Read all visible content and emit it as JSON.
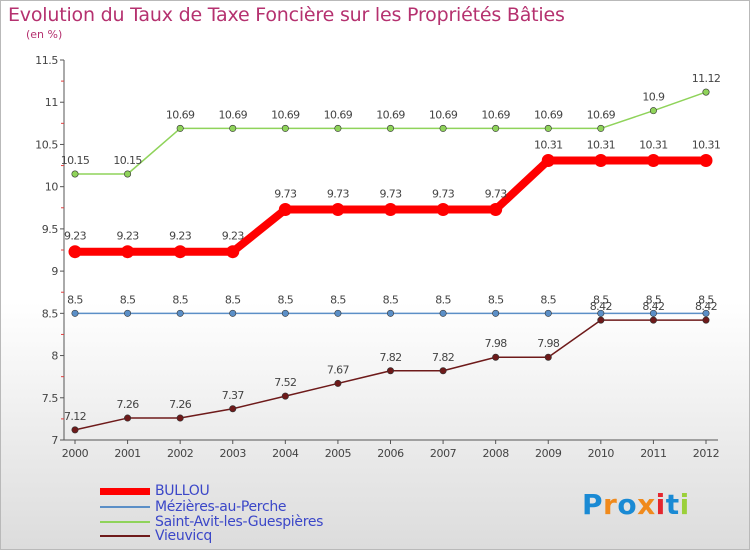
{
  "header": {
    "title": "Evolution du Taux de Taxe Foncière sur les Propriétés Bâties",
    "subtitle": "(en %)"
  },
  "logo": {
    "text": "Proxiti",
    "letter_colors": [
      "#1a8ad4",
      "#f08a1c",
      "#1a8ad4",
      "#f08a1c",
      "#e4262e",
      "#1a8ad4",
      "#9bd03a"
    ]
  },
  "chart_data": {
    "type": "line",
    "title": "Evolution du Taux de Taxe Foncière sur les Propriétés Bâties",
    "subtitle": "(en %)",
    "xlabel": "",
    "ylabel": "",
    "x": [
      "2000",
      "2001",
      "2002",
      "2003",
      "2004",
      "2005",
      "2006",
      "2007",
      "2008",
      "2009",
      "2010",
      "2011",
      "2012"
    ],
    "ylim": [
      7,
      11.5
    ],
    "yticks": [
      "7",
      "7.5",
      "8",
      "8.5",
      "9",
      "9.5",
      "10",
      "10.5",
      "11",
      "11.5"
    ],
    "grid": false,
    "legend_position": "bottom-left",
    "series": [
      {
        "name": "BULLOU",
        "color": "#ff0000",
        "line_width": 8,
        "marker_radius": 6.5,
        "values": [
          9.23,
          9.23,
          9.23,
          9.23,
          9.73,
          9.73,
          9.73,
          9.73,
          9.73,
          10.31,
          10.31,
          10.31,
          10.31
        ],
        "labels": [
          "9.23",
          "9.23",
          "9.23",
          "9.23",
          "9.73",
          "9.73",
          "9.73",
          "9.73",
          "9.73",
          "10.31",
          "10.31",
          "10.31",
          "10.31"
        ]
      },
      {
        "name": "Mézières-au-Perche",
        "color": "#5b8fc7",
        "line_width": 1.5,
        "marker_radius": 3.2,
        "values": [
          8.5,
          8.5,
          8.5,
          8.5,
          8.5,
          8.5,
          8.5,
          8.5,
          8.5,
          8.5,
          8.5,
          8.5,
          8.5
        ],
        "labels": [
          "8.5",
          "8.5",
          "8.5",
          "8.5",
          "8.5",
          "8.5",
          "8.5",
          "8.5",
          "8.5",
          "8.5",
          "8.5",
          "8.5",
          "8.5"
        ]
      },
      {
        "name": "Saint-Avit-les-Guespières",
        "color": "#8fd35a",
        "line_width": 1.5,
        "marker_radius": 3.2,
        "values": [
          10.15,
          10.15,
          10.69,
          10.69,
          10.69,
          10.69,
          10.69,
          10.69,
          10.69,
          10.69,
          10.69,
          10.9,
          11.12
        ],
        "labels": [
          "10.15",
          "10.15",
          "10.69",
          "10.69",
          "10.69",
          "10.69",
          "10.69",
          "10.69",
          "10.69",
          "10.69",
          "10.69",
          "10.9",
          "11.12"
        ]
      },
      {
        "name": "Vieuvicq",
        "color": "#6e1a1a",
        "line_width": 1.5,
        "marker_radius": 3.2,
        "values": [
          7.12,
          7.26,
          7.26,
          7.37,
          7.52,
          7.67,
          7.82,
          7.82,
          7.98,
          7.98,
          8.42,
          8.42,
          8.42
        ],
        "labels": [
          "7.12",
          "7.26",
          "7.26",
          "7.37",
          "7.52",
          "7.67",
          "7.82",
          "7.82",
          "7.98",
          "7.98",
          "8.42",
          "8.42",
          "8.42"
        ]
      }
    ]
  },
  "legend": {
    "items": [
      {
        "label": "BULLOU",
        "color": "#ff0000"
      },
      {
        "label": "Mézières-au-Perche",
        "color": "#5b8fc7"
      },
      {
        "label": "Saint-Avit-les-Guespières",
        "color": "#8fd35a"
      },
      {
        "label": "Vieuvicq",
        "color": "#6e1a1a"
      }
    ]
  }
}
